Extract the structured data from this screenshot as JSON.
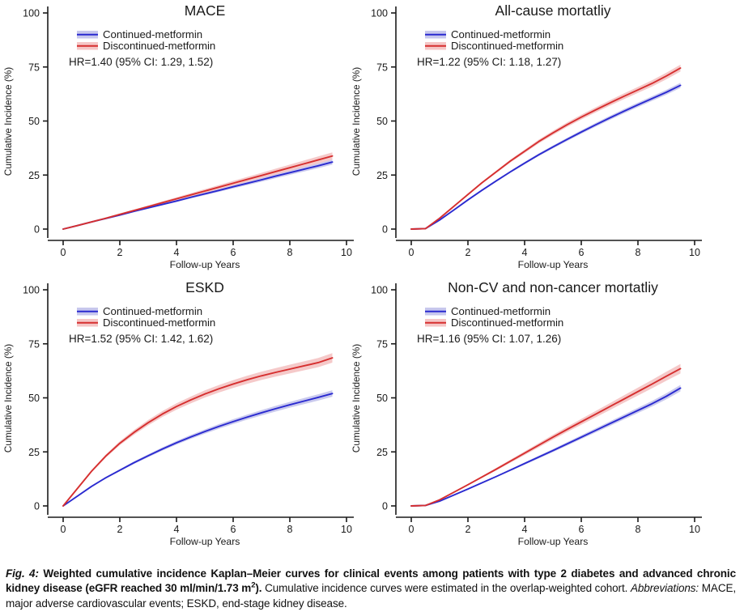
{
  "figure": {
    "ylabel": "Cumulative Incidence (%)",
    "xlabel": "Follow-up Years",
    "legend": {
      "continued": "Continued-metformin",
      "discontinued": "Discontinued-metformin"
    },
    "colors": {
      "continued_line": "#2a2ad0",
      "continued_band": "#bdbdea",
      "discontinued_line": "#d62f2f",
      "discontinued_band": "#f3bcbc",
      "axis": "#1a1a1a"
    }
  },
  "chart_data": [
    {
      "type": "line",
      "title": "MACE",
      "annotation": "HR=1.40 (95% CI: 1.29, 1.52)",
      "xlabel": "Follow-up Years",
      "ylabel": "Cumulative Incidence (%)",
      "xlim": [
        0,
        10
      ],
      "ylim": [
        0,
        100
      ],
      "x_ticks": [
        0,
        2,
        4,
        6,
        8,
        10
      ],
      "y_ticks": [
        0,
        25,
        50,
        75,
        100
      ],
      "x": [
        0,
        0.5,
        1,
        1.5,
        2,
        2.5,
        3,
        3.5,
        4,
        4.5,
        5,
        5.5,
        6,
        6.5,
        7,
        7.5,
        8,
        8.5,
        9,
        9.5
      ],
      "series": [
        {
          "name": "Continued-metformin",
          "role": "continued",
          "values": [
            0,
            1.6,
            3.3,
            4.9,
            6.5,
            8.2,
            9.8,
            11.4,
            13,
            14.7,
            16.3,
            17.9,
            19.6,
            21.2,
            22.8,
            24.5,
            26.1,
            27.7,
            29.3,
            31
          ],
          "ci_halfwidth_end": 1.2
        },
        {
          "name": "Discontinued-metformin",
          "role": "discontinued",
          "values": [
            0,
            1.6,
            3.3,
            5,
            6.8,
            8.6,
            10.4,
            12.2,
            14,
            15.8,
            17.6,
            19.4,
            21.2,
            23,
            24.8,
            26.6,
            28.4,
            30.2,
            32,
            33.8
          ],
          "ci_halfwidth_end": 1.7
        }
      ]
    },
    {
      "type": "line",
      "title": "All-cause mortatliy",
      "annotation": "HR=1.22 (95% CI: 1.18, 1.27)",
      "xlabel": "Follow-up Years",
      "ylabel": "Cumulative Incidence (%)",
      "xlim": [
        0,
        10
      ],
      "ylim": [
        0,
        100
      ],
      "x_ticks": [
        0,
        2,
        4,
        6,
        8,
        10
      ],
      "y_ticks": [
        0,
        25,
        50,
        75,
        100
      ],
      "x": [
        0,
        0.5,
        1,
        1.5,
        2,
        2.5,
        3,
        3.5,
        4,
        4.5,
        5,
        5.5,
        6,
        6.5,
        7,
        7.5,
        8,
        8.5,
        9,
        9.5
      ],
      "series": [
        {
          "name": "Continued-metformin",
          "role": "continued",
          "values": [
            0,
            0.2,
            4.2,
            8.8,
            13.5,
            18,
            22.3,
            26.5,
            30.5,
            34.4,
            38,
            41.5,
            44.9,
            48.2,
            51.4,
            54.5,
            57.5,
            60.4,
            63.3,
            66.5
          ],
          "ci_halfwidth_end": 1.2
        },
        {
          "name": "Discontinued-metformin",
          "role": "discontinued",
          "values": [
            0,
            0.2,
            5,
            10.5,
            16,
            21.5,
            26.5,
            31.5,
            36,
            40.5,
            44.5,
            48.3,
            51.8,
            55.1,
            58.3,
            61.4,
            64.4,
            67.4,
            70.8,
            74.5
          ],
          "ci_halfwidth_end": 1.6
        }
      ]
    },
    {
      "type": "line",
      "title": "ESKD",
      "annotation": "HR=1.52 (95% CI: 1.42, 1.62)",
      "xlabel": "Follow-up Years",
      "ylabel": "Cumulative Incidence (%)",
      "xlim": [
        0,
        10
      ],
      "ylim": [
        0,
        100
      ],
      "x_ticks": [
        0,
        2,
        4,
        6,
        8,
        10
      ],
      "y_ticks": [
        0,
        25,
        50,
        75,
        100
      ],
      "x": [
        0,
        0.5,
        1,
        1.5,
        2,
        2.5,
        3,
        3.5,
        4,
        4.5,
        5,
        5.5,
        6,
        6.5,
        7,
        7.5,
        8,
        8.5,
        9,
        9.5
      ],
      "series": [
        {
          "name": "Continued-metformin",
          "role": "continued",
          "values": [
            0,
            4.5,
            9,
            13,
            16.5,
            20,
            23.2,
            26.3,
            29.2,
            31.9,
            34.4,
            36.8,
            39,
            41.1,
            43.1,
            45,
            46.8,
            48.5,
            50.2,
            52
          ],
          "ci_halfwidth_end": 1.5
        },
        {
          "name": "Discontinued-metformin",
          "role": "discontinued",
          "values": [
            0,
            8,
            16,
            23,
            29,
            34,
            38.5,
            42.5,
            46,
            49,
            51.8,
            54.2,
            56.4,
            58.4,
            60.2,
            61.8,
            63.3,
            64.8,
            66.3,
            68.5
          ],
          "ci_halfwidth_end": 2.2
        }
      ]
    },
    {
      "type": "line",
      "title": "Non-CV and non-cancer mortatliy",
      "annotation": "HR=1.16 (95% CI: 1.07, 1.26)",
      "xlabel": "Follow-up Years",
      "ylabel": "Cumulative Incidence (%)",
      "xlim": [
        0,
        10
      ],
      "ylim": [
        0,
        100
      ],
      "x_ticks": [
        0,
        2,
        4,
        6,
        8,
        10
      ],
      "y_ticks": [
        0,
        25,
        50,
        75,
        100
      ],
      "x": [
        0,
        0.5,
        1,
        1.5,
        2,
        2.5,
        3,
        3.5,
        4,
        4.5,
        5,
        5.5,
        6,
        6.5,
        7,
        7.5,
        8,
        8.5,
        9,
        9.5
      ],
      "series": [
        {
          "name": "Continued-metformin",
          "role": "continued",
          "values": [
            0,
            0.2,
            2.2,
            5,
            7.8,
            10.7,
            13.6,
            16.6,
            19.6,
            22.6,
            25.6,
            28.7,
            31.8,
            34.9,
            38,
            41.1,
            44.2,
            47.3,
            50.7,
            54.5
          ],
          "ci_halfwidth_end": 1.5
        },
        {
          "name": "Discontinued-metformin",
          "role": "discontinued",
          "values": [
            0,
            0.2,
            2.8,
            6.3,
            9.8,
            13.4,
            17,
            20.7,
            24.4,
            28.1,
            31.8,
            35.4,
            38.9,
            42.4,
            45.9,
            49.4,
            52.9,
            56.4,
            60,
            63.5
          ],
          "ci_halfwidth_end": 2.2
        }
      ]
    }
  ],
  "caption": {
    "fig_label": "Fig. 4:",
    "bold_main_a": "Weighted cumulative incidence Kaplan–Meier curves for clinical events among patients with type 2 diabetes and advanced chronic kidney disease (eGFR reached 30 ml/min/1.73 m",
    "sup": "2",
    "bold_main_b": ").",
    "regular": "Cumulative incidence curves were estimated in the overlap-weighted cohort.",
    "abbrev_label": "Abbreviations:",
    "abbrev_text": "MACE, major adverse cardiovascular events; ESKD, end-stage kidney disease."
  }
}
